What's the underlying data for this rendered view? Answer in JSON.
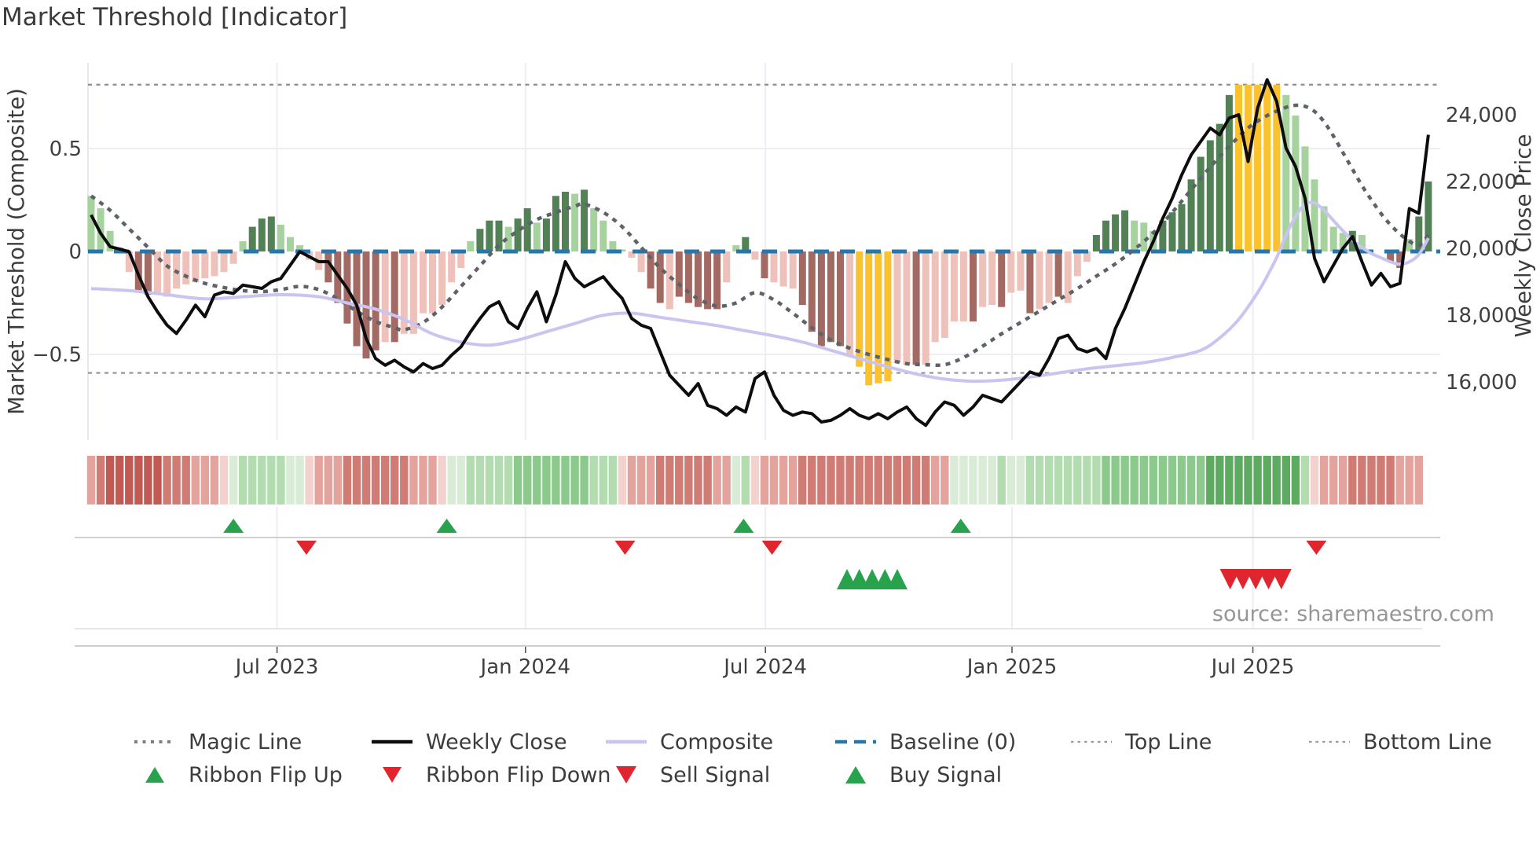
{
  "title": "Market Threshold [Indicator]",
  "source_text": "source: sharemaestro.com",
  "colors": {
    "lg": "#a6d29e",
    "dg": "#538156",
    "lp": "#eec1ba",
    "dr": "#a36a63",
    "y": "#fcc22d",
    "r0": "#f3d2ce",
    "r1": "#e4a39c",
    "r2": "#d07c74",
    "r3": "#c25a54",
    "g0": "#d8ecd6",
    "g1": "#b3dcb0",
    "g2": "#8bca8c",
    "g3": "#5cab61",
    "baseline": "#2577ad",
    "composite": "#cac4f1",
    "magic": "#5e6269",
    "close": "#0d0d0d",
    "reference": "#8f8f8f",
    "flip_up": "#29a24d",
    "flip_down": "#e1252e"
  },
  "chart_data": {
    "type": "mixed",
    "description": "Weekly composite-indicator histogram with weekly close price line, composite and magic moving lines, momentum ribbon strip and buy/sell signal markers",
    "x_axis": {
      "ticks": [
        {
          "label": "Jul 2023",
          "week": 19.6
        },
        {
          "label": "Jan 2024",
          "week": 45.8
        },
        {
          "label": "Jul 2024",
          "week": 71.1
        },
        {
          "label": "Jan 2025",
          "week": 97.1
        },
        {
          "label": "Jul 2025",
          "week": 122.5
        }
      ]
    },
    "y_left": {
      "label": "Market Threshold (Composite)",
      "ticks": [
        {
          "label": "0.5",
          "value": 0.5
        },
        {
          "label": "0",
          "value": 0
        },
        {
          "label": "−0.5",
          "value": -0.5
        }
      ],
      "range": [
        -0.91,
        0.92
      ]
    },
    "y_right": {
      "label": "Weekly Close Price",
      "ticks": [
        {
          "label": "24,000",
          "value": 24000
        },
        {
          "label": "22,000",
          "value": 22000
        },
        {
          "label": "20,000",
          "value": 20000
        },
        {
          "label": "18,000",
          "value": 18000
        },
        {
          "label": "16,000",
          "value": 16000
        }
      ]
    },
    "reference_lines": {
      "top_line": 0.81,
      "bottom_line": -0.59,
      "baseline": 0
    },
    "histogram": {
      "weeks": 142,
      "values": [
        0.27,
        0.21,
        0.1,
        0.02,
        -0.1,
        -0.2,
        -0.21,
        -0.2,
        -0.22,
        -0.18,
        -0.16,
        -0.15,
        -0.13,
        -0.12,
        -0.1,
        -0.06,
        0.05,
        0.12,
        0.16,
        0.17,
        0.13,
        0.07,
        0.03,
        -0.04,
        -0.09,
        -0.15,
        -0.25,
        -0.35,
        -0.46,
        -0.52,
        -0.48,
        -0.44,
        -0.44,
        -0.4,
        -0.4,
        -0.3,
        -0.3,
        -0.26,
        -0.15,
        -0.08,
        0.05,
        0.11,
        0.15,
        0.15,
        0.12,
        0.16,
        0.21,
        0.14,
        0.16,
        0.27,
        0.29,
        0.28,
        0.3,
        0.21,
        0.15,
        0.05,
        0.01,
        -0.03,
        -0.1,
        -0.18,
        -0.25,
        -0.28,
        -0.22,
        -0.25,
        -0.27,
        -0.28,
        -0.28,
        -0.15,
        0.03,
        0.07,
        -0.04,
        -0.13,
        -0.15,
        -0.17,
        -0.18,
        -0.26,
        -0.39,
        -0.46,
        -0.44,
        -0.46,
        -0.51,
        -0.56,
        -0.65,
        -0.64,
        -0.63,
        -0.54,
        -0.55,
        -0.55,
        -0.55,
        -0.44,
        -0.42,
        -0.34,
        -0.34,
        -0.34,
        -0.27,
        -0.26,
        -0.27,
        -0.2,
        -0.19,
        -0.3,
        -0.28,
        -0.25,
        -0.22,
        -0.25,
        -0.12,
        -0.05,
        0.08,
        0.15,
        0.18,
        0.2,
        0.15,
        0.14,
        0.1,
        0.15,
        0.19,
        0.23,
        0.35,
        0.46,
        0.54,
        0.62,
        0.76,
        0.81,
        0.81,
        0.81,
        0.81,
        0.81,
        0.76,
        0.66,
        0.51,
        0.35,
        0.22,
        0.12,
        0.09,
        0.1,
        0.08,
        0,
        0,
        -0.05,
        -0.08,
        0.06,
        0.17,
        0.34
      ],
      "colors": [
        "lg",
        "lg",
        "lg",
        "lg",
        "lp",
        "dr",
        "dr",
        "lp",
        "lp",
        "lp",
        "lp",
        "lp",
        "lp",
        "lp",
        "lp",
        "lp",
        "lg",
        "dg",
        "dg",
        "dg",
        "lg",
        "lg",
        "lg",
        "lp",
        "lp",
        "dr",
        "dr",
        "dr",
        "dr",
        "dr",
        "dr",
        "lp",
        "dr",
        "lp",
        "lp",
        "lp",
        "lp",
        "lp",
        "lp",
        "lp",
        "lg",
        "dg",
        "dg",
        "dg",
        "lg",
        "dg",
        "dg",
        "lg",
        "dg",
        "dg",
        "dg",
        "lg",
        "dg",
        "lg",
        "lg",
        "lg",
        "lg",
        "lp",
        "lp",
        "dr",
        "dr",
        "lp",
        "dr",
        "dr",
        "dr",
        "dr",
        "dr",
        "lp",
        "lg",
        "dg",
        "lp",
        "dr",
        "lp",
        "lp",
        "lp",
        "dr",
        "dr",
        "dr",
        "dr",
        "dr",
        "lp",
        "y",
        "y",
        "y",
        "y",
        "lp",
        "lp",
        "dr",
        "lp",
        "lp",
        "lp",
        "lp",
        "lp",
        "dr",
        "lp",
        "lp",
        "dr",
        "lp",
        "lp",
        "dr",
        "lp",
        "lp",
        "dr",
        "lp",
        "lp",
        "lp",
        "dg",
        "dg",
        "dg",
        "dg",
        "lg",
        "lg",
        "lg",
        "dg",
        "dg",
        "dg",
        "dg",
        "dg",
        "dg",
        "dg",
        "dg",
        "y",
        "y",
        "y",
        "y",
        "y",
        "lg",
        "lg",
        "lg",
        "lg",
        "lg",
        "lg",
        "lg",
        "dg",
        "lg",
        "lg",
        "lg",
        "dr",
        "dr",
        "lg",
        "dg",
        "dg"
      ]
    },
    "weekly_close": [
      21000,
      20450,
      20050,
      19980,
      19900,
      19200,
      18550,
      18100,
      17700,
      17450,
      17850,
      18300,
      17950,
      18600,
      18700,
      18650,
      18900,
      18850,
      18800,
      19000,
      19100,
      19500,
      19900,
      19750,
      19600,
      19600,
      19200,
      18800,
      18300,
      17300,
      16700,
      16500,
      16650,
      16450,
      16300,
      16550,
      16400,
      16500,
      16800,
      17050,
      17500,
      17900,
      18250,
      18400,
      17800,
      17600,
      18200,
      18700,
      17800,
      18600,
      19600,
      19100,
      18850,
      19000,
      19150,
      18800,
      18500,
      17900,
      17700,
      17600,
      16900,
      16200,
      15900,
      15600,
      15950,
      15300,
      15200,
      15000,
      15250,
      15100,
      16100,
      16300,
      15600,
      15150,
      15000,
      15100,
      15050,
      14800,
      14850,
      15000,
      15200,
      15000,
      14900,
      15050,
      14900,
      15100,
      15250,
      14900,
      14700,
      15100,
      15400,
      15300,
      15000,
      15250,
      15600,
      15500,
      15400,
      15700,
      16000,
      16300,
      16200,
      16700,
      17300,
      17400,
      17000,
      16900,
      17000,
      16700,
      17600,
      18200,
      18900,
      19600,
      20200,
      20900,
      21500,
      22200,
      22800,
      23200,
      23600,
      23400,
      23900,
      24000,
      22600,
      24200,
      25050,
      24400,
      23000,
      22450,
      21500,
      19700,
      19000,
      19500,
      20000,
      20350,
      19600,
      18900,
      19250,
      18850,
      18950,
      21190,
      21050,
      23400
    ],
    "composite_keypoints": [
      [
        0,
        -0.18
      ],
      [
        4,
        -0.19
      ],
      [
        8,
        -0.21
      ],
      [
        12,
        -0.23
      ],
      [
        16,
        -0.22
      ],
      [
        20,
        -0.21
      ],
      [
        24,
        -0.22
      ],
      [
        27,
        -0.25
      ],
      [
        30,
        -0.28
      ],
      [
        33,
        -0.33
      ],
      [
        36,
        -0.4
      ],
      [
        39,
        -0.44
      ],
      [
        42,
        -0.455
      ],
      [
        45,
        -0.43
      ],
      [
        48,
        -0.39
      ],
      [
        51,
        -0.35
      ],
      [
        54,
        -0.31
      ],
      [
        57,
        -0.3
      ],
      [
        60,
        -0.32
      ],
      [
        63,
        -0.34
      ],
      [
        66,
        -0.36
      ],
      [
        69,
        -0.385
      ],
      [
        72,
        -0.41
      ],
      [
        75,
        -0.44
      ],
      [
        78,
        -0.48
      ],
      [
        81,
        -0.52
      ],
      [
        84,
        -0.56
      ],
      [
        87,
        -0.595
      ],
      [
        90,
        -0.62
      ],
      [
        93,
        -0.63
      ],
      [
        96,
        -0.625
      ],
      [
        99,
        -0.61
      ],
      [
        102,
        -0.59
      ],
      [
        105,
        -0.57
      ],
      [
        108,
        -0.555
      ],
      [
        111,
        -0.54
      ],
      [
        114,
        -0.515
      ],
      [
        117,
        -0.48
      ],
      [
        119,
        -0.42
      ],
      [
        121,
        -0.33
      ],
      [
        123,
        -0.2
      ],
      [
        124,
        -0.12
      ],
      [
        125,
        -0.03
      ],
      [
        126,
        0.08
      ],
      [
        127,
        0.17
      ],
      [
        128,
        0.23
      ],
      [
        129,
        0.235
      ],
      [
        130,
        0.2
      ],
      [
        131,
        0.15
      ],
      [
        132,
        0.1
      ],
      [
        133,
        0.055
      ],
      [
        134,
        0.02
      ],
      [
        135,
        -0.01
      ],
      [
        136,
        -0.03
      ],
      [
        137,
        -0.05
      ],
      [
        138,
        -0.062
      ],
      [
        139,
        -0.05
      ],
      [
        140,
        -0.015
      ],
      [
        141,
        0.065
      ]
    ],
    "magic_keypoints": [
      [
        0,
        0.27
      ],
      [
        2,
        0.2
      ],
      [
        4,
        0.11
      ],
      [
        6,
        0.02
      ],
      [
        8,
        -0.07
      ],
      [
        10,
        -0.12
      ],
      [
        12,
        -0.155
      ],
      [
        14,
        -0.175
      ],
      [
        16,
        -0.19
      ],
      [
        18,
        -0.195
      ],
      [
        20,
        -0.185
      ],
      [
        22,
        -0.17
      ],
      [
        24,
        -0.185
      ],
      [
        26,
        -0.23
      ],
      [
        28,
        -0.29
      ],
      [
        30,
        -0.34
      ],
      [
        32,
        -0.37
      ],
      [
        33,
        -0.38
      ],
      [
        35,
        -0.345
      ],
      [
        37,
        -0.27
      ],
      [
        39,
        -0.17
      ],
      [
        41,
        -0.07
      ],
      [
        43,
        0.03
      ],
      [
        45,
        0.1
      ],
      [
        47,
        0.155
      ],
      [
        49,
        0.19
      ],
      [
        51,
        0.22
      ],
      [
        52,
        0.23
      ],
      [
        54,
        0.19
      ],
      [
        56,
        0.12
      ],
      [
        58,
        0.02
      ],
      [
        60,
        -0.08
      ],
      [
        62,
        -0.16
      ],
      [
        64,
        -0.23
      ],
      [
        66,
        -0.265
      ],
      [
        68,
        -0.25
      ],
      [
        70,
        -0.2
      ],
      [
        72,
        -0.235
      ],
      [
        74,
        -0.3
      ],
      [
        76,
        -0.37
      ],
      [
        78,
        -0.43
      ],
      [
        80,
        -0.47
      ],
      [
        82,
        -0.5
      ],
      [
        84,
        -0.525
      ],
      [
        86,
        -0.545
      ],
      [
        88,
        -0.55
      ],
      [
        90,
        -0.55
      ],
      [
        92,
        -0.515
      ],
      [
        94,
        -0.46
      ],
      [
        96,
        -0.4
      ],
      [
        98,
        -0.345
      ],
      [
        100,
        -0.29
      ],
      [
        102,
        -0.235
      ],
      [
        104,
        -0.18
      ],
      [
        106,
        -0.12
      ],
      [
        108,
        -0.06
      ],
      [
        110,
        0.01
      ],
      [
        112,
        0.09
      ],
      [
        114,
        0.19
      ],
      [
        116,
        0.3
      ],
      [
        118,
        0.41
      ],
      [
        120,
        0.51
      ],
      [
        122,
        0.6
      ],
      [
        124,
        0.66
      ],
      [
        126,
        0.7
      ],
      [
        127,
        0.71
      ],
      [
        128,
        0.705
      ],
      [
        129,
        0.68
      ],
      [
        130,
        0.63
      ],
      [
        131,
        0.56
      ],
      [
        132,
        0.48
      ],
      [
        133,
        0.4
      ],
      [
        134,
        0.32
      ],
      [
        135,
        0.25
      ],
      [
        136,
        0.185
      ],
      [
        137,
        0.13
      ],
      [
        138,
        0.085
      ],
      [
        139,
        0.05
      ],
      [
        140,
        0.03
      ],
      [
        141,
        0.08
      ]
    ],
    "ribbon": [
      "r1",
      "r2",
      "r3",
      "r3",
      "r3",
      "r3",
      "r3",
      "r3",
      "r2",
      "r2",
      "r2",
      "r1",
      "r1",
      "r1",
      "r0",
      "g0",
      "g1",
      "g1",
      "g1",
      "g1",
      "g1",
      "g0",
      "g0",
      "r0",
      "r1",
      "r1",
      "r1",
      "r2",
      "r2",
      "r2",
      "r2",
      "r2",
      "r2",
      "r2",
      "r1",
      "r1",
      "r1",
      "r0",
      "g0",
      "g0",
      "g1",
      "g1",
      "g1",
      "g1",
      "g1",
      "g2",
      "g2",
      "g2",
      "g2",
      "g2",
      "g2",
      "g2",
      "g2",
      "g1",
      "g1",
      "g1",
      "r0",
      "r1",
      "r1",
      "r1",
      "r2",
      "r2",
      "r2",
      "r2",
      "r2",
      "r2",
      "r1",
      "r1",
      "g0",
      "g1",
      "r0",
      "r1",
      "r1",
      "r1",
      "r1",
      "r2",
      "r2",
      "r2",
      "r2",
      "r2",
      "r2",
      "r2",
      "r2",
      "r2",
      "r2",
      "r2",
      "r2",
      "r2",
      "r2",
      "r1",
      "r1",
      "g0",
      "g0",
      "g0",
      "g0",
      "g0",
      "g1",
      "g0",
      "g0",
      "g1",
      "g1",
      "g1",
      "g1",
      "g1",
      "g1",
      "g1",
      "g1",
      "g2",
      "g2",
      "g2",
      "g2",
      "g2",
      "g2",
      "g2",
      "g2",
      "g2",
      "g2",
      "g2",
      "g3",
      "g3",
      "g3",
      "g3",
      "g3",
      "g3",
      "g3",
      "g3",
      "g3",
      "g3",
      "g1",
      "r0",
      "r1",
      "r1",
      "r1",
      "r2",
      "r2",
      "r2",
      "r2",
      "r2",
      "r1",
      "r1",
      "r1"
    ],
    "signals": {
      "ribbon_flip_up_weeks": [
        15,
        37.5,
        68.8,
        91.7
      ],
      "ribbon_flip_down_weeks": [
        22.7,
        56.3,
        71.8,
        129.2
      ],
      "buy_signal_weeks": [
        79.7,
        81.0,
        82.35,
        83.7,
        85.0
      ],
      "sell_signal_weeks": [
        120.1,
        121.45,
        122.8,
        124.15,
        125.5
      ]
    }
  },
  "legend": {
    "row1": [
      {
        "label": "Magic Line",
        "marker": "dotted-thick-gray"
      },
      {
        "label": "Weekly Close",
        "marker": "solid-black"
      },
      {
        "label": "Composite",
        "marker": "solid-lavender"
      },
      {
        "label": "Baseline (0)",
        "marker": "dashed-blue"
      },
      {
        "label": "Top Line",
        "marker": "dotted-thin-gray"
      },
      {
        "label": "Bottom Line",
        "marker": "dotted-thin-gray"
      }
    ],
    "row2": [
      {
        "label": "Ribbon Flip Up",
        "marker": "triangle-up-green"
      },
      {
        "label": "Ribbon Flip Down",
        "marker": "triangle-down-red"
      },
      {
        "label": "Sell Signal",
        "marker": "triangle-down-red"
      },
      {
        "label": "Buy Signal",
        "marker": "triangle-up-green"
      }
    ]
  }
}
